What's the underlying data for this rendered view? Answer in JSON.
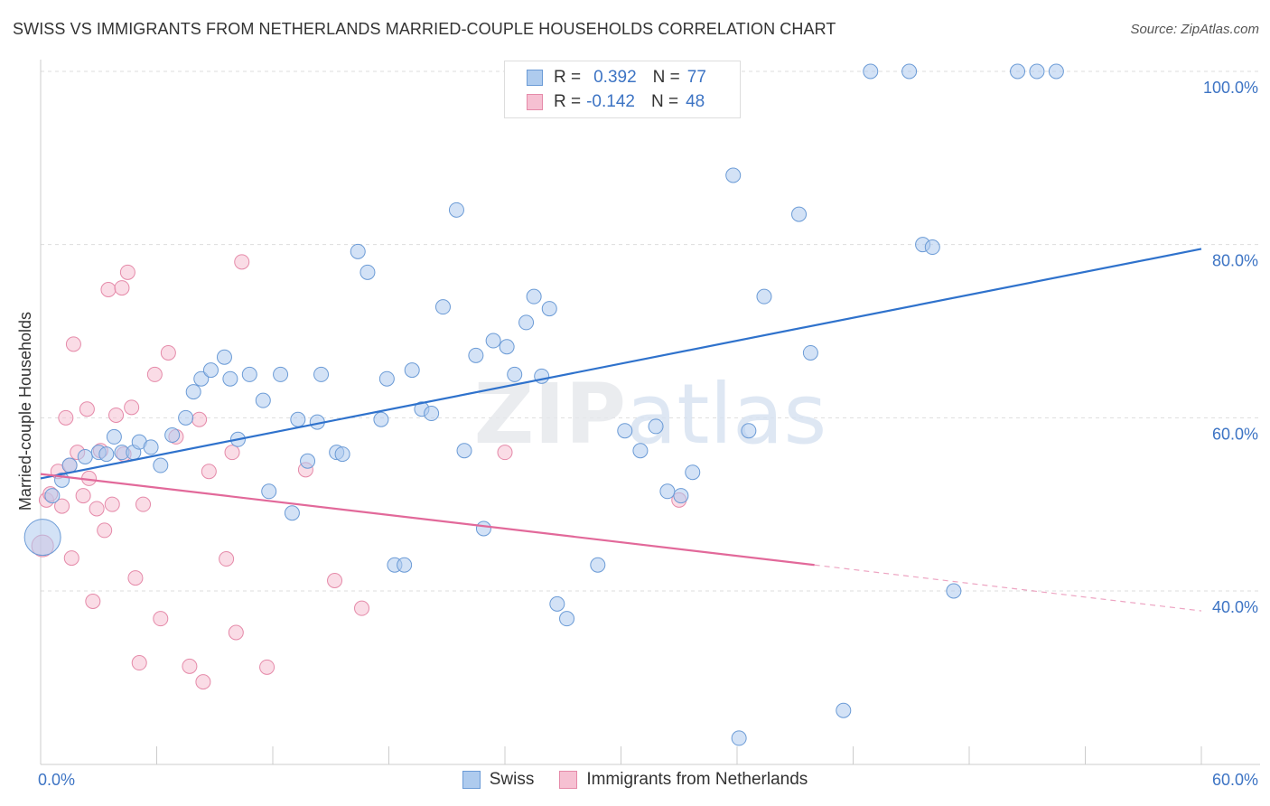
{
  "title": "SWISS VS IMMIGRANTS FROM NETHERLANDS MARRIED-COUPLE HOUSEHOLDS CORRELATION CHART",
  "source": "Source: ZipAtlas.com",
  "watermark": "ZIPatlas",
  "legend": {
    "swiss": {
      "r_label": "R =",
      "r_value": "0.392",
      "n_label": "N =",
      "n_value": "77"
    },
    "netherlands": {
      "r_label": "R =",
      "r_value": "-0.142",
      "n_label": "N =",
      "n_value": "48"
    }
  },
  "colors": {
    "swiss_fill": "#aecbee",
    "swiss_stroke": "#6b9bd6",
    "swiss_line": "#2f72cc",
    "nl_fill": "#f6c0d2",
    "nl_stroke": "#e58aa9",
    "nl_line": "#e2699a",
    "tick_label": "#3d74c4",
    "grid": "#dddddd"
  },
  "chart_data": {
    "type": "scatter",
    "title": "SWISS VS IMMIGRANTS FROM NETHERLANDS MARRIED-COUPLE HOUSEHOLDS CORRELATION CHART",
    "xlabel": "",
    "ylabel": "Married-couple Households",
    "xlim": [
      0,
      60
    ],
    "ylim": [
      20,
      100
    ],
    "x_tick_labels": [
      "0.0%",
      "60.0%"
    ],
    "y_tick_labels": [
      "40.0%",
      "60.0%",
      "80.0%",
      "100.0%"
    ],
    "y_ticks": [
      40,
      60,
      80,
      100
    ],
    "grid": true,
    "legend_position": "bottom",
    "series": [
      {
        "name": "Swiss",
        "trend": {
          "x": [
            0,
            60
          ],
          "y": [
            53.0,
            79.5
          ]
        },
        "points": [
          [
            0.1,
            46.2,
            20
          ],
          [
            0.6,
            51.0,
            8
          ],
          [
            1.1,
            52.8,
            8
          ],
          [
            1.5,
            54.5,
            8
          ],
          [
            2.3,
            55.5,
            8
          ],
          [
            3.0,
            56.0,
            8
          ],
          [
            3.4,
            55.8,
            8
          ],
          [
            3.8,
            57.8,
            8
          ],
          [
            4.2,
            56.0,
            8
          ],
          [
            4.8,
            56.0,
            8
          ],
          [
            5.1,
            57.2,
            8
          ],
          [
            5.7,
            56.6,
            8
          ],
          [
            6.2,
            54.5,
            8
          ],
          [
            6.8,
            58.0,
            8
          ],
          [
            7.5,
            60.0,
            8
          ],
          [
            7.9,
            63.0,
            8
          ],
          [
            8.3,
            64.5,
            8
          ],
          [
            8.8,
            65.5,
            8
          ],
          [
            9.5,
            67.0,
            8
          ],
          [
            9.8,
            64.5,
            8
          ],
          [
            10.2,
            57.5,
            8
          ],
          [
            10.8,
            65.0,
            8
          ],
          [
            11.5,
            62.0,
            8
          ],
          [
            11.8,
            51.5,
            8
          ],
          [
            12.4,
            65.0,
            8
          ],
          [
            13.0,
            49.0,
            8
          ],
          [
            13.3,
            59.8,
            8
          ],
          [
            13.8,
            55.0,
            8
          ],
          [
            14.3,
            59.5,
            8
          ],
          [
            14.5,
            65.0,
            8
          ],
          [
            15.3,
            56.0,
            8
          ],
          [
            15.6,
            55.8,
            8
          ],
          [
            16.4,
            79.2,
            8
          ],
          [
            16.9,
            76.8,
            8
          ],
          [
            17.6,
            59.8,
            8
          ],
          [
            17.9,
            64.5,
            8
          ],
          [
            18.3,
            43.0,
            8
          ],
          [
            18.8,
            43.0,
            8
          ],
          [
            19.2,
            65.5,
            8
          ],
          [
            19.7,
            61.0,
            8
          ],
          [
            20.2,
            60.5,
            8
          ],
          [
            20.8,
            72.8,
            8
          ],
          [
            21.5,
            84.0,
            8
          ],
          [
            21.9,
            56.2,
            8
          ],
          [
            22.5,
            67.2,
            8
          ],
          [
            22.9,
            47.2,
            8
          ],
          [
            23.4,
            68.9,
            8
          ],
          [
            24.1,
            68.2,
            8
          ],
          [
            24.5,
            65.0,
            8
          ],
          [
            25.1,
            71.0,
            8
          ],
          [
            25.5,
            74.0,
            8
          ],
          [
            25.9,
            64.8,
            8
          ],
          [
            26.3,
            72.6,
            8
          ],
          [
            26.7,
            38.5,
            8
          ],
          [
            27.2,
            36.8,
            8
          ],
          [
            28.8,
            43.0,
            8
          ],
          [
            30.2,
            58.5,
            8
          ],
          [
            31.0,
            56.2,
            8
          ],
          [
            31.8,
            59.0,
            8
          ],
          [
            32.4,
            51.5,
            8
          ],
          [
            33.1,
            51.0,
            8
          ],
          [
            33.7,
            53.7,
            8
          ],
          [
            35.8,
            88.0,
            8
          ],
          [
            36.1,
            23.0,
            8
          ],
          [
            36.6,
            58.5,
            8
          ],
          [
            37.4,
            74.0,
            8
          ],
          [
            39.2,
            83.5,
            8
          ],
          [
            39.8,
            67.5,
            8
          ],
          [
            41.5,
            26.2,
            8
          ],
          [
            42.9,
            100.0,
            8
          ],
          [
            44.9,
            100.0,
            8
          ],
          [
            45.6,
            80.0,
            8
          ],
          [
            46.1,
            79.7,
            8
          ],
          [
            47.2,
            40.0,
            8
          ],
          [
            50.5,
            100.0,
            8
          ],
          [
            51.5,
            100.0,
            8
          ],
          [
            52.5,
            100.0,
            8
          ]
        ]
      },
      {
        "name": "Immigrants from Netherlands",
        "trend": {
          "x": [
            0,
            40
          ],
          "y": [
            53.5,
            43.0
          ]
        },
        "trend_dashed": {
          "x": [
            40,
            60
          ],
          "y": [
            43.0,
            37.7
          ]
        },
        "points": [
          [
            0.1,
            45.2,
            12
          ],
          [
            0.3,
            50.5,
            8
          ],
          [
            0.5,
            51.2,
            8
          ],
          [
            0.9,
            53.8,
            8
          ],
          [
            1.1,
            49.8,
            8
          ],
          [
            1.3,
            60.0,
            8
          ],
          [
            1.5,
            54.5,
            8
          ],
          [
            1.6,
            43.8,
            8
          ],
          [
            1.7,
            68.5,
            8
          ],
          [
            1.9,
            56.0,
            8
          ],
          [
            2.2,
            51.0,
            8
          ],
          [
            2.4,
            61.0,
            8
          ],
          [
            2.5,
            53.0,
            8
          ],
          [
            2.7,
            38.8,
            8
          ],
          [
            2.9,
            49.5,
            8
          ],
          [
            3.1,
            56.2,
            8
          ],
          [
            3.3,
            47.0,
            8
          ],
          [
            3.5,
            74.8,
            8
          ],
          [
            3.7,
            50.0,
            8
          ],
          [
            3.9,
            60.3,
            8
          ],
          [
            4.2,
            75.0,
            8
          ],
          [
            4.3,
            55.8,
            8
          ],
          [
            4.5,
            76.8,
            8
          ],
          [
            4.7,
            61.2,
            8
          ],
          [
            4.9,
            41.5,
            8
          ],
          [
            5.1,
            31.7,
            8
          ],
          [
            5.3,
            50.0,
            8
          ],
          [
            5.9,
            65.0,
            8
          ],
          [
            6.2,
            36.8,
            8
          ],
          [
            6.6,
            67.5,
            8
          ],
          [
            7.0,
            57.8,
            8
          ],
          [
            7.7,
            31.3,
            8
          ],
          [
            8.2,
            59.8,
            8
          ],
          [
            8.4,
            29.5,
            8
          ],
          [
            8.7,
            53.8,
            8
          ],
          [
            9.6,
            43.7,
            8
          ],
          [
            9.9,
            56.0,
            8
          ],
          [
            10.1,
            35.2,
            8
          ],
          [
            10.4,
            78.0,
            8
          ],
          [
            11.7,
            31.2,
            8
          ],
          [
            13.7,
            54.0,
            8
          ],
          [
            15.2,
            41.2,
            8
          ],
          [
            16.6,
            38.0,
            8
          ],
          [
            24.0,
            56.0,
            8
          ],
          [
            33.0,
            50.5,
            8
          ]
        ]
      }
    ]
  }
}
